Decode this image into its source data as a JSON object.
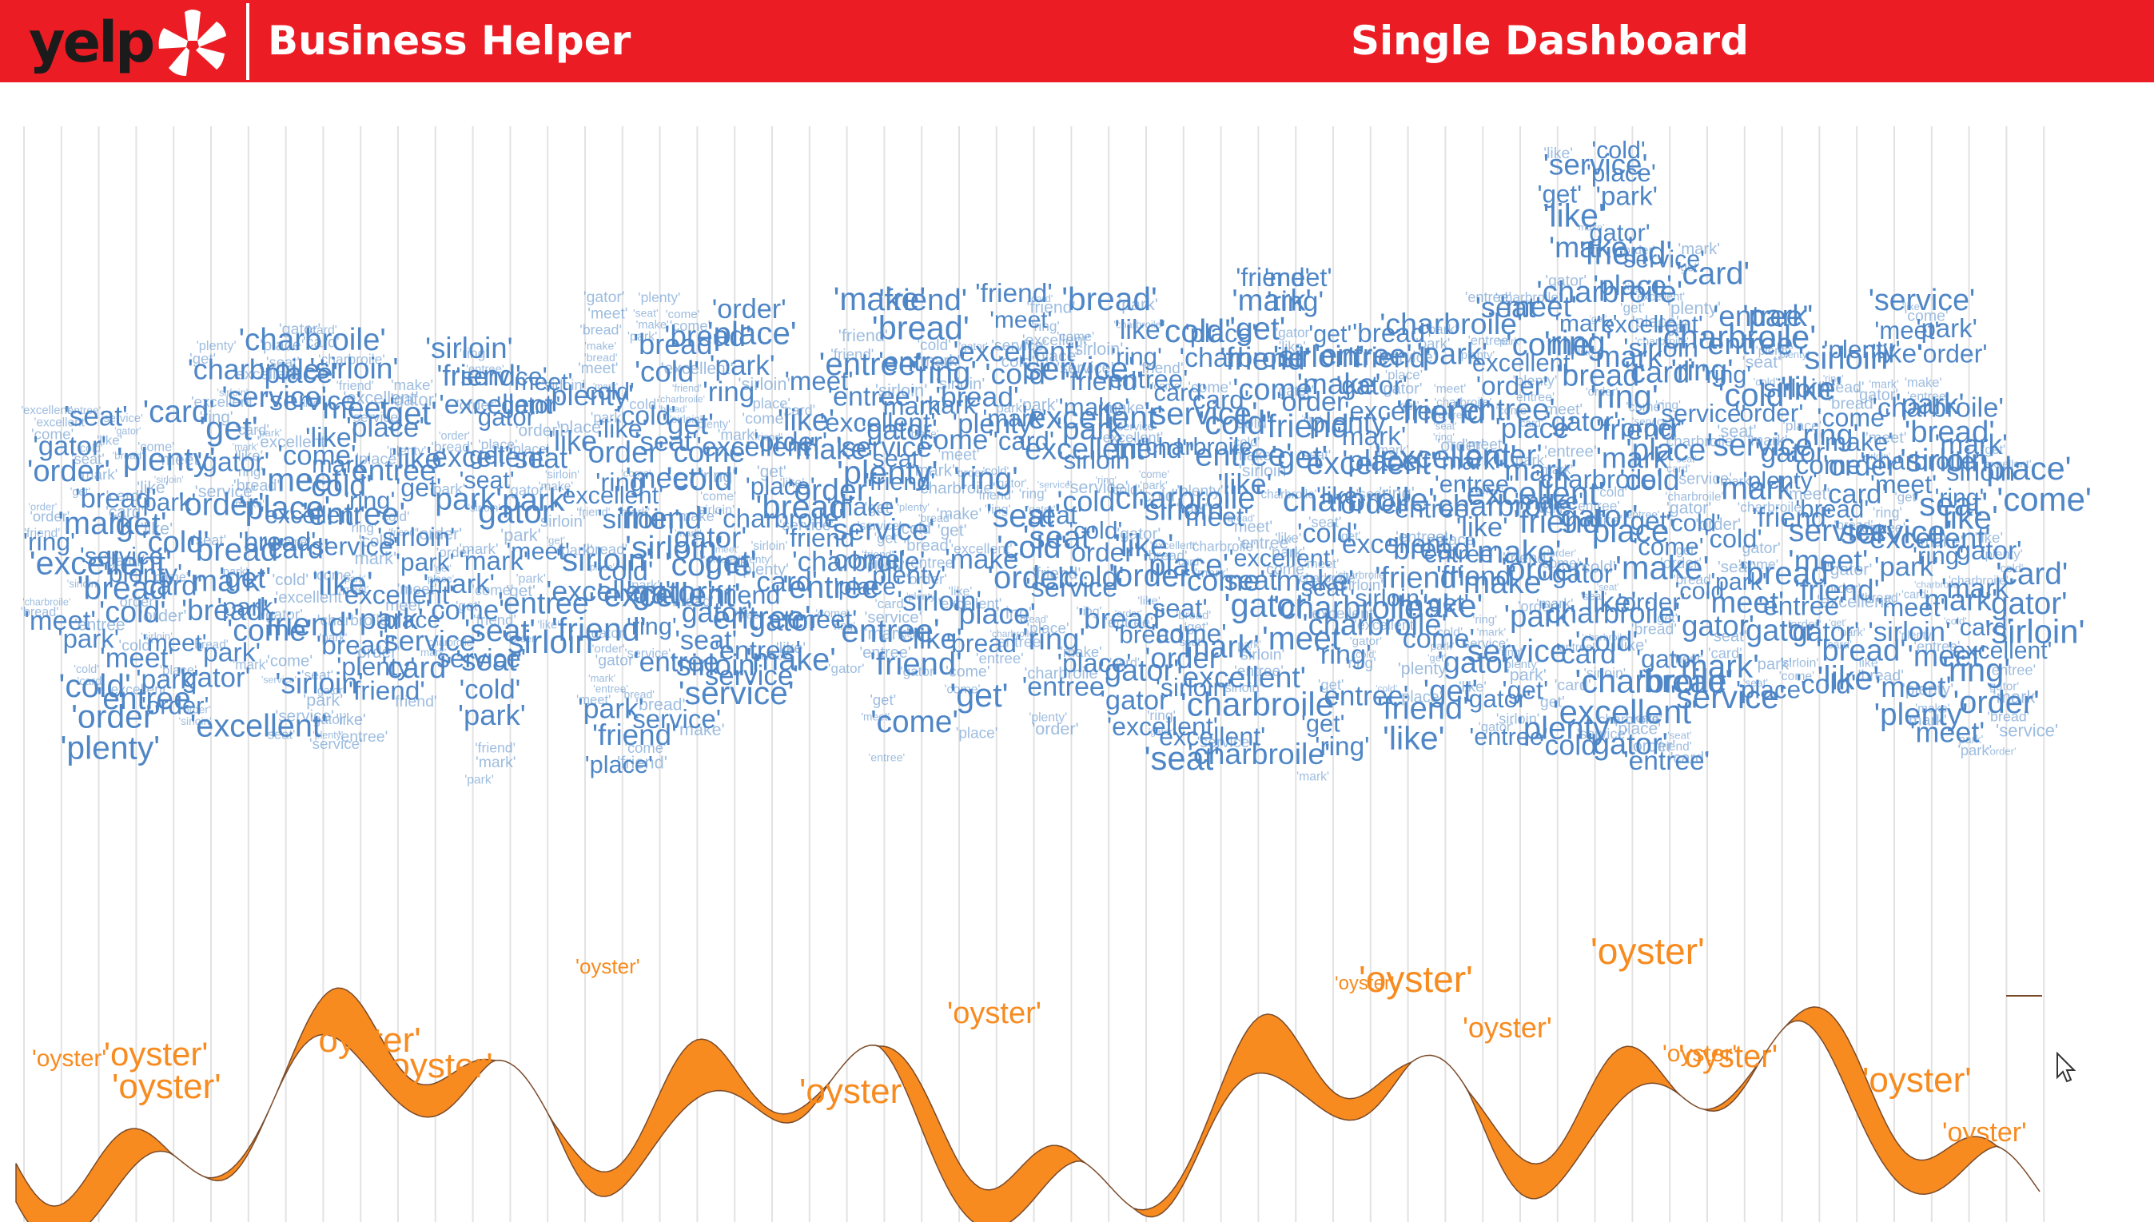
{
  "header": {
    "logo_text": "yelp",
    "app_title": "Business Helper",
    "page_title": "Single Dashboard",
    "brand_color": "#ec1c24"
  },
  "word_cloud": {
    "words": [
      "'park'",
      "'place'",
      "'like'",
      "'make'",
      "'service'",
      "'card'",
      "'entree'",
      "'get'",
      "'mark'",
      "'ring'",
      "'cold'",
      "'seat'",
      "'charbroile'",
      "'sirloin'",
      "'meet'",
      "'gator'",
      "'excellent'",
      "'come'",
      "'friend'",
      "'bread'",
      "'order'",
      "'plenty'"
    ],
    "color": "#4f86c6"
  },
  "stream": {
    "word": "'oyster'",
    "fill_color": "#f78b1f",
    "line_color": "#7a4a2a"
  },
  "icons": {
    "logo_burst": "yelp-burst-icon",
    "cursor": "mouse-cursor-icon"
  }
}
